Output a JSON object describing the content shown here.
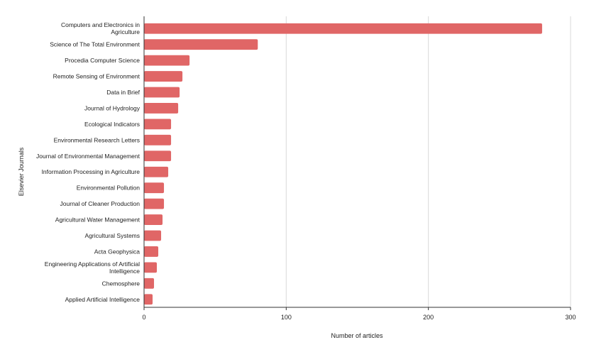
{
  "chart_data": {
    "type": "bar",
    "orientation": "horizontal",
    "xlabel": "Number of articles",
    "ylabel": "Elsevier Journals",
    "xlim": [
      0,
      300
    ],
    "xticks": [
      0,
      100,
      200,
      300
    ],
    "grid": true,
    "bar_color": "#e06666",
    "categories": [
      [
        "Computers and Electronics in",
        "Agriculture"
      ],
      [
        "Science of The Total Environment"
      ],
      [
        "Procedia Computer Science"
      ],
      [
        "Remote Sensing of Environment"
      ],
      [
        "Data in Brief"
      ],
      [
        "Journal of Hydrology"
      ],
      [
        "Ecological Indicators"
      ],
      [
        "Environmental Research Letters"
      ],
      [
        "Journal of Environmental Management"
      ],
      [
        "Information Processing in Agriculture"
      ],
      [
        "Environmental Pollution"
      ],
      [
        "Journal of Cleaner Production"
      ],
      [
        "Agricultural Water Management"
      ],
      [
        "Agricultural Systems"
      ],
      [
        "Acta Geophysica"
      ],
      [
        "Engineering Applications of Artificial",
        "Intelligence"
      ],
      [
        "Chemosphere"
      ],
      [
        "Applied Artificial Intelligence"
      ]
    ],
    "values": [
      280,
      80,
      32,
      27,
      25,
      24,
      19,
      19,
      19,
      17,
      14,
      14,
      13,
      12,
      10,
      9,
      7,
      6
    ]
  }
}
